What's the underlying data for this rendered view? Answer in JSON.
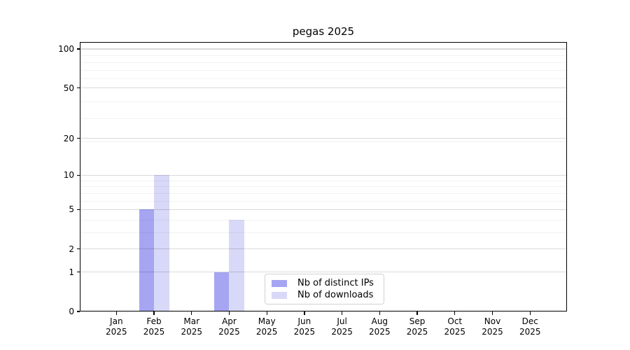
{
  "chart_data": {
    "type": "bar",
    "title": "pegas 2025",
    "x_months": [
      "Jan",
      "Feb",
      "Mar",
      "Apr",
      "May",
      "Jun",
      "Jul",
      "Aug",
      "Sep",
      "Oct",
      "Nov",
      "Dec"
    ],
    "x_year": "2025",
    "series": [
      {
        "name": "Nb of distinct IPs",
        "color": "#a5a5f2",
        "values": [
          0,
          5,
          0,
          1,
          0,
          0,
          0,
          0,
          0,
          0,
          0,
          0
        ]
      },
      {
        "name": "Nb of downloads",
        "color": "#d8d8f8",
        "values": [
          0,
          10,
          0,
          4,
          0,
          0,
          0,
          0,
          0,
          0,
          0,
          0
        ]
      }
    ],
    "yscale": "log1p",
    "yticks": [
      0,
      1,
      2,
      5,
      10,
      20,
      50,
      100
    ],
    "ylim": [
      0,
      113
    ],
    "grid": true,
    "legend_position": "lower center inside"
  },
  "colors": {
    "background": "#ffffff",
    "axis": "#000000",
    "text": "#000000",
    "grid_major": "rgba(0,0,0,0.15)",
    "grid_minor": "rgba(0,0,0,0.05)",
    "legend_border": "#d2d2d2"
  }
}
